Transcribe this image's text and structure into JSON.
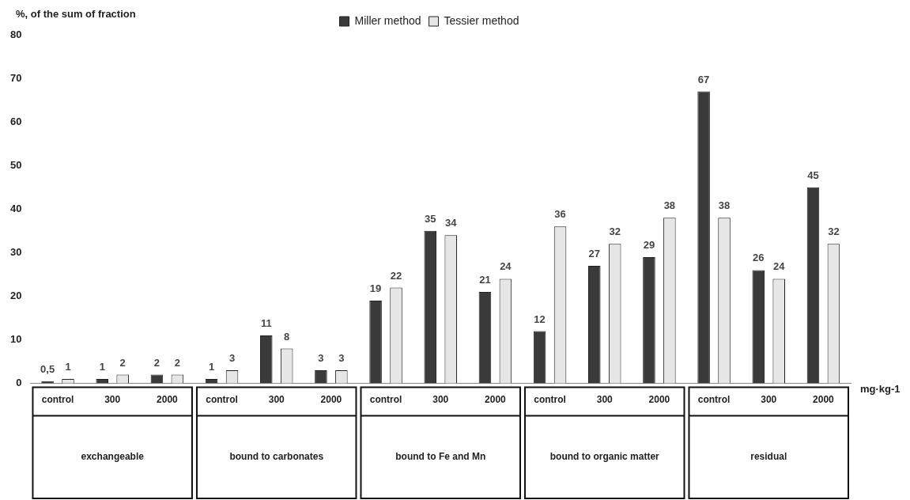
{
  "chart_data": {
    "type": "bar",
    "ylabel": "%, of the sum of fraction",
    "xlabel": "mg·kg-1",
    "categories": [
      "control",
      "300",
      "2000",
      "control",
      "300",
      "2000",
      "control",
      "300",
      "2000",
      "control",
      "300",
      "2000",
      "control",
      "300",
      "2000"
    ],
    "annotations": [
      "exchangeable",
      "bound to carbonates",
      "bound to Fe and Mn",
      "bound to organic matter",
      "residual"
    ],
    "series": [
      {
        "name": "Miller method",
        "color": "#3a3a3a",
        "values": [
          0.5,
          1,
          2,
          1,
          11,
          3,
          19,
          35,
          21,
          12,
          27,
          29,
          67,
          26,
          45
        ],
        "value_labels": [
          "0,5",
          "1",
          "2",
          "1",
          "11",
          "3",
          "19",
          "35",
          "21",
          "12",
          "27",
          "29",
          "67",
          "26",
          "45"
        ]
      },
      {
        "name": "Tessier method",
        "color": "#e6e6e6",
        "values": [
          1,
          2,
          2,
          3,
          8,
          3,
          22,
          34,
          24,
          36,
          32,
          38,
          38,
          24,
          32
        ],
        "value_labels": [
          "1",
          "2",
          "2",
          "3",
          "8",
          "3",
          "22",
          "34",
          "24",
          "36",
          "32",
          "38",
          "38",
          "24",
          "32"
        ]
      }
    ],
    "ylim": [
      0,
      80
    ],
    "yticks": [
      0,
      10,
      20,
      30,
      40,
      50,
      60,
      70,
      80
    ],
    "grid": false,
    "legend": "top"
  }
}
